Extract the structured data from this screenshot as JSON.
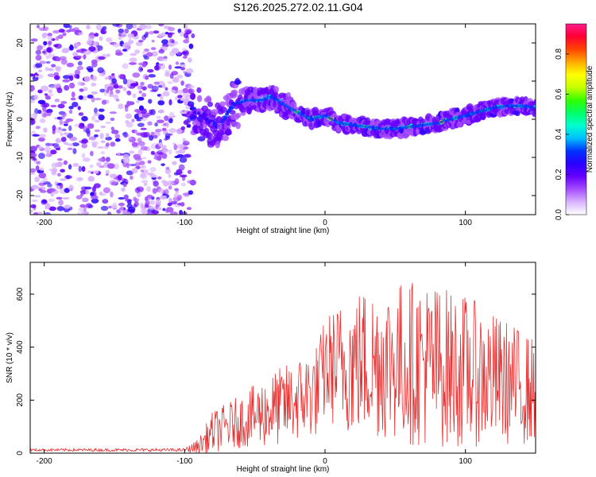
{
  "title": "S126.2025.272.02.11.G04",
  "chart_data": [
    {
      "type": "heatmap",
      "xlabel": "Height of straight line (km)",
      "ylabel": "Frequency (Hz)",
      "xlim": [
        -210,
        150
      ],
      "ylim": [
        -25,
        25
      ],
      "xticks": [
        -200,
        -100,
        0,
        100
      ],
      "yticks": [
        -20,
        -10,
        0,
        10,
        20
      ],
      "colorbar": {
        "label": "Normalized spectral amplitude",
        "range": [
          0,
          0.95
        ],
        "ticks": [
          "0.0",
          "0.2",
          "0.4",
          "0.6",
          "0.8"
        ],
        "colors": [
          "#ffffff",
          "#d9b3ff",
          "#a64dff",
          "#6600ff",
          "#2a00ff",
          "#0033ff",
          "#00bfff",
          "#00ffd0",
          "#00ff66",
          "#33ff00",
          "#c8ff00",
          "#ffff00",
          "#ffaa00",
          "#ff4400",
          "#ff0033",
          "#ff1a8c"
        ]
      },
      "ridge": {
        "x": [
          -95,
          -85,
          -75,
          -65,
          -55,
          -45,
          -38,
          -30,
          -20,
          -10,
          0,
          10,
          20,
          30,
          40,
          50,
          60,
          70,
          80,
          90,
          100,
          110,
          120,
          130,
          140,
          150
        ],
        "freq": [
          3,
          0,
          -2,
          4,
          5,
          5,
          6,
          4,
          2,
          0,
          1,
          -1,
          -1.5,
          -2,
          -2.5,
          -2.5,
          -2,
          -1.5,
          -1,
          0,
          1,
          2,
          3,
          3.5,
          3.5,
          3
        ]
      },
      "noise_region": [
        -210,
        -100
      ]
    },
    {
      "type": "line",
      "xlabel": "Height of straight line (km)",
      "ylabel": "SNR (10 * v/v)",
      "xlim": [
        -210,
        150
      ],
      "ylim": [
        0,
        720
      ],
      "xticks": [
        -200,
        -100,
        0,
        100
      ],
      "yticks": [
        0,
        200,
        400,
        600
      ],
      "line_color": "#e83030",
      "envelope": {
        "x": [
          -210,
          -100,
          -90,
          -80,
          -60,
          -40,
          -20,
          -5,
          0,
          10,
          20,
          40,
          70,
          100,
          120,
          140,
          150
        ],
        "mean": [
          12,
          12,
          25,
          80,
          120,
          160,
          200,
          240,
          320,
          330,
          340,
          350,
          340,
          310,
          280,
          250,
          230
        ],
        "spread": [
          5,
          6,
          30,
          80,
          100,
          140,
          160,
          180,
          200,
          240,
          280,
          300,
          320,
          290,
          250,
          220,
          200
        ]
      }
    }
  ]
}
